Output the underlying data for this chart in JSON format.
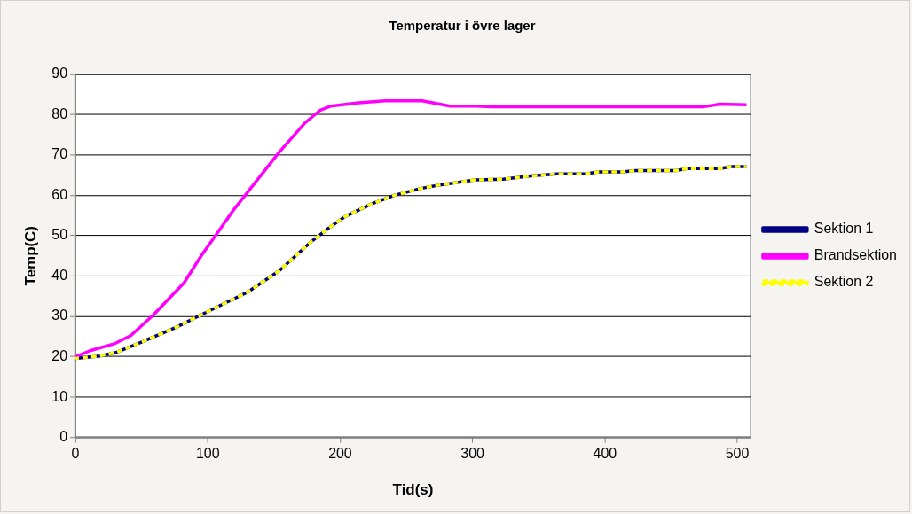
{
  "chart_data": {
    "type": "line",
    "title": "Temperatur i övre lager",
    "xlabel": "Tid(s)",
    "ylabel": "Temp(C)",
    "xlim": [
      0,
      510
    ],
    "xticks": [
      0,
      100,
      200,
      300,
      400,
      500
    ],
    "ylim": [
      0,
      90
    ],
    "yticks": [
      0,
      10,
      20,
      30,
      40,
      50,
      60,
      70,
      80,
      90
    ],
    "grid": "y",
    "legend": "right",
    "marker": "none",
    "series": [
      {
        "name": "Sektion 1",
        "color": "#000080",
        "line_style": "solid",
        "x": [
          0,
          18.5,
          30,
          49,
          76,
          95,
          130,
          154,
          178,
          193,
          204,
          224,
          241,
          261,
          274,
          302,
          323,
          344,
          364,
          385,
          395,
          413,
          423,
          454,
          462,
          487,
          495,
          507
        ],
        "values": [
          19.6,
          20.2,
          21,
          23.5,
          27.3,
          30.4,
          36,
          41.3,
          48.5,
          52.3,
          54.8,
          57.9,
          60,
          61.7,
          62.5,
          63.8,
          64,
          64.8,
          65.3,
          65.3,
          65.8,
          65.8,
          66.1,
          66.1,
          66.6,
          66.6,
          67.1,
          67.1
        ]
      },
      {
        "name": "Brandsektion",
        "color": "#ff00ff",
        "line_style": "solid",
        "x": [
          0,
          11,
          30,
          42,
          59,
          82,
          95,
          120,
          154,
          173,
          185,
          193,
          214,
          234,
          262,
          283,
          303,
          314,
          474,
          487,
          507
        ],
        "values": [
          20,
          21.5,
          23.3,
          25.3,
          30.4,
          38.3,
          45,
          56.6,
          70.7,
          77.8,
          81.1,
          82.1,
          82.9,
          83.4,
          83.4,
          82.1,
          82.1,
          81.9,
          81.9,
          82.6,
          82.4
        ]
      },
      {
        "name": "Sektion 2",
        "color": "#ffff00",
        "line_style": "dashed",
        "x": [
          0,
          18.5,
          30,
          49,
          76,
          95,
          130,
          154,
          178,
          193,
          204,
          224,
          241,
          261,
          274,
          302,
          323,
          344,
          364,
          385,
          395,
          413,
          423,
          454,
          462,
          487,
          495,
          507
        ],
        "values": [
          19.6,
          20.2,
          21,
          23.5,
          27.3,
          30.4,
          36,
          41.3,
          48.5,
          52.3,
          54.8,
          57.9,
          60,
          61.7,
          62.5,
          63.8,
          64,
          64.8,
          65.3,
          65.3,
          65.8,
          65.8,
          66.1,
          66.1,
          66.6,
          66.6,
          67.1,
          67.1
        ]
      }
    ]
  }
}
